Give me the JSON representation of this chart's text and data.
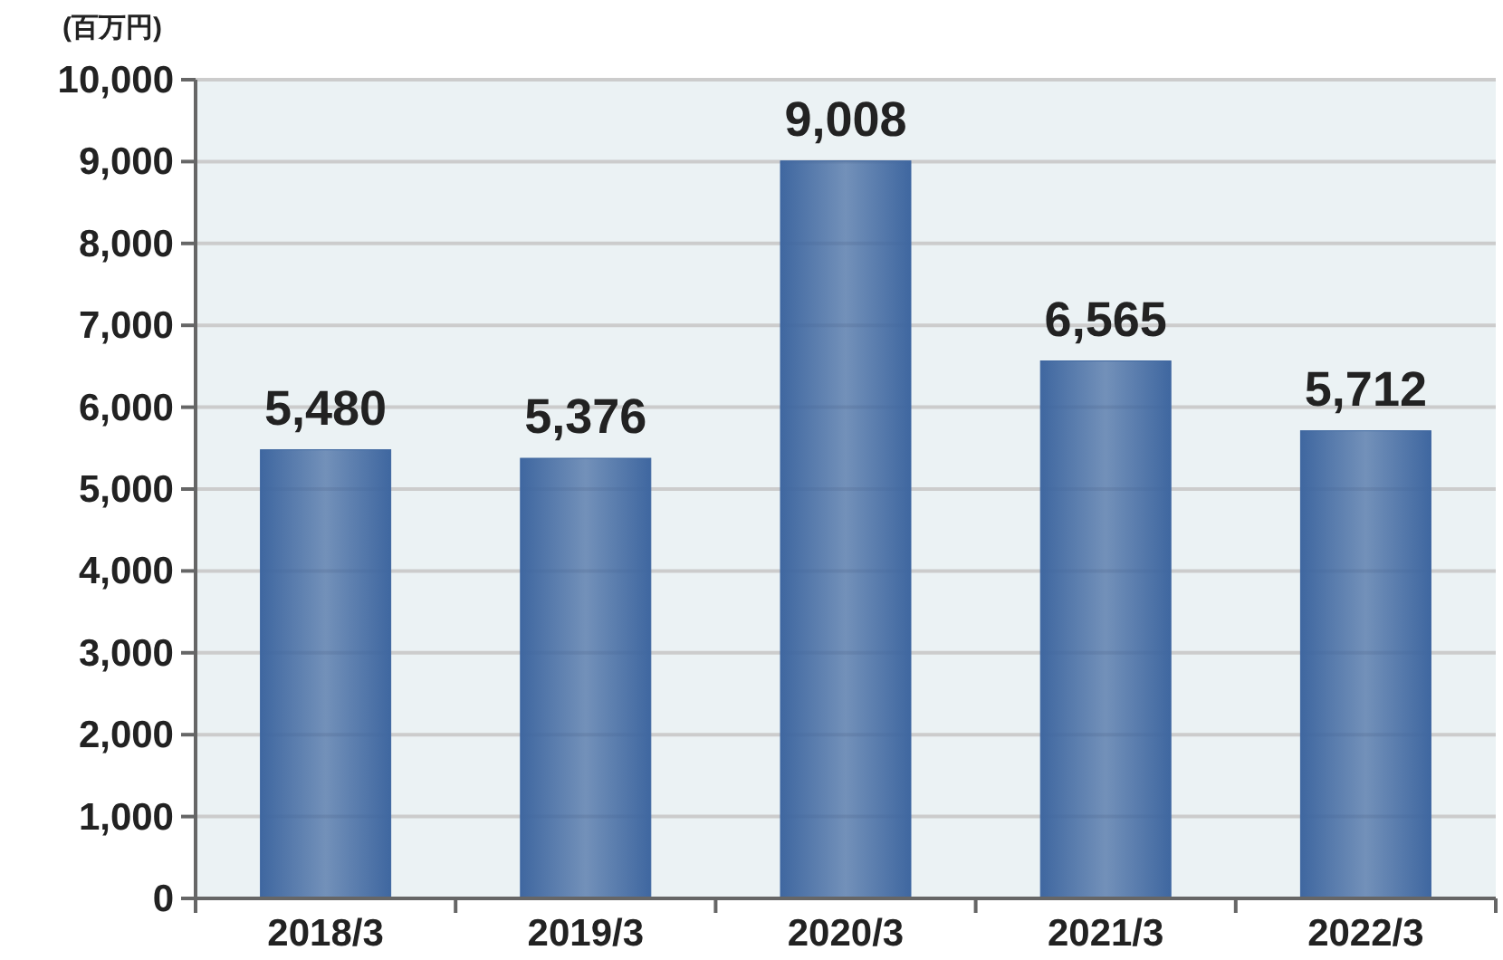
{
  "chart_data": {
    "type": "bar",
    "ylabel": "(百万円)",
    "categories": [
      "2018/3",
      "2019/3",
      "2020/3",
      "2021/3",
      "2022/3"
    ],
    "values": [
      5480,
      5376,
      9008,
      6565,
      5712
    ],
    "value_labels": [
      "5,480",
      "5,376",
      "9,008",
      "6,565",
      "5,712"
    ],
    "color": "#3f67a0",
    "ylim": [
      0,
      10000
    ],
    "yticks": [
      0,
      {
        "value": 1000,
        "label": "1,000"
      },
      {
        "value": 2000,
        "label": "2,000"
      },
      {
        "value": 3000,
        "label": "3,000"
      },
      {
        "value": 4000,
        "label": "4,000"
      },
      {
        "value": 5000,
        "label": "5,000"
      },
      {
        "value": 6000,
        "label": "6,000"
      },
      {
        "value": 7000,
        "label": "7,000"
      },
      {
        "value": 8000,
        "label": "8,000"
      },
      {
        "value": 9000,
        "label": "9,000"
      },
      {
        "value": 10000,
        "label": "10,000"
      }
    ],
    "grid": "y"
  }
}
